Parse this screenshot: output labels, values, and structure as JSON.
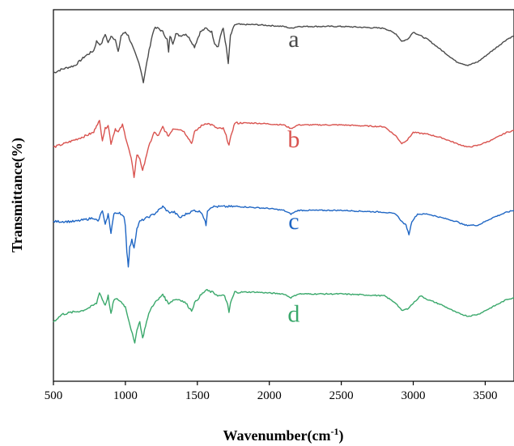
{
  "chart_data": {
    "type": "line",
    "title": "",
    "xlabel": "Wavenumber(cm",
    "xlabel_sup": "-1",
    "xlabel_close": ")",
    "ylabel": "Transmittance(%)",
    "xlim": [
      500,
      3700
    ],
    "ylim": [
      0,
      100
    ],
    "x_ticks": [
      500,
      1000,
      1500,
      2000,
      2500,
      3000,
      3500
    ],
    "x_tick_labels": [
      "500",
      "1000",
      "1500",
      "2000",
      "2500",
      "3000",
      "3500"
    ],
    "y_ticks_visible": false,
    "grid": false,
    "legend": "labels placed next to each curve",
    "series": [
      {
        "name": "a",
        "color": "#4a4a4a",
        "points": [
          [
            500,
            83
          ],
          [
            560,
            84
          ],
          [
            650,
            85
          ],
          [
            720,
            87.5
          ],
          [
            780,
            89
          ],
          [
            800,
            91.5
          ],
          [
            830,
            90.5
          ],
          [
            860,
            93.5
          ],
          [
            880,
            91
          ],
          [
            900,
            93
          ],
          [
            930,
            92
          ],
          [
            950,
            88.5
          ],
          [
            970,
            93
          ],
          [
            1000,
            94
          ],
          [
            1020,
            93
          ],
          [
            1050,
            90
          ],
          [
            1080,
            87
          ],
          [
            1100,
            85
          ],
          [
            1125,
            80.5
          ],
          [
            1150,
            86
          ],
          [
            1180,
            92
          ],
          [
            1200,
            95
          ],
          [
            1230,
            95
          ],
          [
            1260,
            94
          ],
          [
            1290,
            92
          ],
          [
            1300,
            88.5
          ],
          [
            1310,
            93
          ],
          [
            1330,
            91
          ],
          [
            1350,
            93.5
          ],
          [
            1380,
            93
          ],
          [
            1420,
            93.5
          ],
          [
            1450,
            92
          ],
          [
            1480,
            90
          ],
          [
            1500,
            92
          ],
          [
            1520,
            94
          ],
          [
            1560,
            95
          ],
          [
            1600,
            94
          ],
          [
            1620,
            91
          ],
          [
            1645,
            90
          ],
          [
            1660,
            93
          ],
          [
            1680,
            95
          ],
          [
            1700,
            90
          ],
          [
            1715,
            85.5
          ],
          [
            1730,
            93
          ],
          [
            1760,
            96
          ],
          [
            1900,
            96
          ],
          [
            2100,
            95.5
          ],
          [
            2150,
            95
          ],
          [
            2200,
            95.5
          ],
          [
            2500,
            95.5
          ],
          [
            2800,
            95
          ],
          [
            2880,
            93.5
          ],
          [
            2920,
            91.5
          ],
          [
            2960,
            92
          ],
          [
            3000,
            94
          ],
          [
            3100,
            92
          ],
          [
            3200,
            89
          ],
          [
            3300,
            86
          ],
          [
            3380,
            85
          ],
          [
            3450,
            86
          ],
          [
            3550,
            89
          ],
          [
            3650,
            92
          ],
          [
            3700,
            93
          ]
        ]
      },
      {
        "name": "b",
        "color": "#d9534f",
        "points": [
          [
            500,
            63
          ],
          [
            580,
            64
          ],
          [
            650,
            65
          ],
          [
            720,
            66
          ],
          [
            780,
            67
          ],
          [
            800,
            69
          ],
          [
            820,
            70
          ],
          [
            840,
            65
          ],
          [
            860,
            68
          ],
          [
            880,
            69
          ],
          [
            900,
            64
          ],
          [
            930,
            68
          ],
          [
            950,
            67
          ],
          [
            980,
            69
          ],
          [
            1000,
            66
          ],
          [
            1020,
            63
          ],
          [
            1040,
            60
          ],
          [
            1060,
            55
          ],
          [
            1080,
            61
          ],
          [
            1100,
            60
          ],
          [
            1120,
            56.5
          ],
          [
            1140,
            60
          ],
          [
            1170,
            64
          ],
          [
            1200,
            67
          ],
          [
            1230,
            66
          ],
          [
            1260,
            68.5
          ],
          [
            1280,
            67
          ],
          [
            1300,
            66
          ],
          [
            1330,
            68
          ],
          [
            1360,
            68
          ],
          [
            1400,
            67.5
          ],
          [
            1430,
            66
          ],
          [
            1460,
            64
          ],
          [
            1480,
            67
          ],
          [
            1520,
            68.5
          ],
          [
            1560,
            69.5
          ],
          [
            1600,
            69
          ],
          [
            1640,
            68
          ],
          [
            1680,
            68
          ],
          [
            1700,
            66
          ],
          [
            1720,
            63.5
          ],
          [
            1740,
            67
          ],
          [
            1760,
            69.5
          ],
          [
            1900,
            69.5
          ],
          [
            2100,
            69
          ],
          [
            2150,
            68
          ],
          [
            2200,
            69
          ],
          [
            2500,
            69
          ],
          [
            2800,
            68.5
          ],
          [
            2880,
            66
          ],
          [
            2920,
            64
          ],
          [
            2960,
            65
          ],
          [
            3000,
            67
          ],
          [
            3100,
            66.5
          ],
          [
            3200,
            65.5
          ],
          [
            3300,
            64
          ],
          [
            3380,
            63
          ],
          [
            3450,
            63.5
          ],
          [
            3550,
            65
          ],
          [
            3650,
            67
          ],
          [
            3700,
            67.5
          ]
        ]
      },
      {
        "name": "c",
        "color": "#1f66c4",
        "points": [
          [
            500,
            43
          ],
          [
            580,
            43
          ],
          [
            650,
            43
          ],
          [
            720,
            43.5
          ],
          [
            780,
            44
          ],
          [
            810,
            43
          ],
          [
            840,
            46
          ],
          [
            860,
            42
          ],
          [
            880,
            45
          ],
          [
            900,
            40
          ],
          [
            920,
            45
          ],
          [
            960,
            45.5
          ],
          [
            990,
            44
          ],
          [
            1000,
            42
          ],
          [
            1010,
            35
          ],
          [
            1020,
            31
          ],
          [
            1030,
            36
          ],
          [
            1045,
            38
          ],
          [
            1060,
            36
          ],
          [
            1080,
            41
          ],
          [
            1100,
            43
          ],
          [
            1150,
            44
          ],
          [
            1200,
            45
          ],
          [
            1230,
            46
          ],
          [
            1260,
            47
          ],
          [
            1300,
            45.5
          ],
          [
            1340,
            45.5
          ],
          [
            1380,
            44
          ],
          [
            1420,
            45
          ],
          [
            1480,
            46
          ],
          [
            1530,
            45.5
          ],
          [
            1550,
            43.5
          ],
          [
            1560,
            42
          ],
          [
            1570,
            46
          ],
          [
            1600,
            47
          ],
          [
            1800,
            47
          ],
          [
            2000,
            46.5
          ],
          [
            2100,
            46
          ],
          [
            2150,
            45
          ],
          [
            2200,
            46
          ],
          [
            2500,
            46
          ],
          [
            2800,
            45.5
          ],
          [
            2880,
            45
          ],
          [
            2920,
            43
          ],
          [
            2950,
            42
          ],
          [
            2970,
            39.5
          ],
          [
            2990,
            43
          ],
          [
            3030,
            45
          ],
          [
            3100,
            45
          ],
          [
            3200,
            44
          ],
          [
            3300,
            43
          ],
          [
            3360,
            42
          ],
          [
            3450,
            42
          ],
          [
            3550,
            44
          ],
          [
            3650,
            45.5
          ],
          [
            3700,
            46
          ]
        ]
      },
      {
        "name": "d",
        "color": "#3aa86b",
        "points": [
          [
            500,
            16
          ],
          [
            560,
            18
          ],
          [
            620,
            18.5
          ],
          [
            700,
            19
          ],
          [
            760,
            20
          ],
          [
            800,
            21
          ],
          [
            820,
            24
          ],
          [
            840,
            22
          ],
          [
            860,
            20.5
          ],
          [
            880,
            23
          ],
          [
            900,
            18
          ],
          [
            920,
            22
          ],
          [
            950,
            22
          ],
          [
            980,
            21
          ],
          [
            1000,
            20
          ],
          [
            1020,
            17
          ],
          [
            1040,
            14
          ],
          [
            1065,
            10
          ],
          [
            1080,
            14
          ],
          [
            1100,
            16
          ],
          [
            1120,
            11.5
          ],
          [
            1140,
            15
          ],
          [
            1170,
            19
          ],
          [
            1200,
            21
          ],
          [
            1230,
            22
          ],
          [
            1260,
            23.5
          ],
          [
            1280,
            22
          ],
          [
            1300,
            21
          ],
          [
            1340,
            22
          ],
          [
            1380,
            22
          ],
          [
            1420,
            21
          ],
          [
            1460,
            19
          ],
          [
            1480,
            21
          ],
          [
            1520,
            23
          ],
          [
            1560,
            24.5
          ],
          [
            1600,
            24
          ],
          [
            1650,
            23
          ],
          [
            1690,
            23
          ],
          [
            1710,
            20.5
          ],
          [
            1720,
            18.5
          ],
          [
            1730,
            21
          ],
          [
            1760,
            24
          ],
          [
            1900,
            24
          ],
          [
            2100,
            23.5
          ],
          [
            2150,
            22.5
          ],
          [
            2200,
            23.5
          ],
          [
            2500,
            23.5
          ],
          [
            2800,
            23
          ],
          [
            2880,
            21
          ],
          [
            2920,
            19
          ],
          [
            2960,
            19.5
          ],
          [
            3000,
            21
          ],
          [
            3050,
            23
          ],
          [
            3100,
            22
          ],
          [
            3200,
            20.5
          ],
          [
            3300,
            18.5
          ],
          [
            3380,
            17.5
          ],
          [
            3450,
            18
          ],
          [
            3550,
            20
          ],
          [
            3650,
            22
          ],
          [
            3700,
            22.5
          ]
        ]
      }
    ],
    "series_labels": [
      {
        "text": "a",
        "x": 2170,
        "y": 90
      },
      {
        "text": "b",
        "x": 2170,
        "y": 63
      },
      {
        "text": "c",
        "x": 2170,
        "y": 41
      },
      {
        "text": "d",
        "x": 2170,
        "y": 16
      }
    ]
  }
}
